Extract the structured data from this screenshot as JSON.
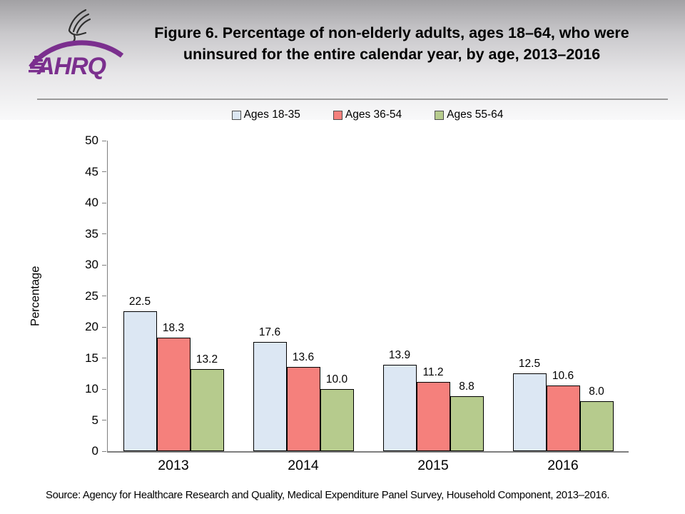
{
  "header": {
    "title_line1": "Figure 6. Percentage of non-elderly adults, ages 18–64, who were",
    "title_line2": "uninsured for the entire calendar year, by age, 2013–2016"
  },
  "logo": {
    "text": "AHRQ",
    "brand_color": "#7b2f8e"
  },
  "chart_data": {
    "type": "bar",
    "title": "Figure 6. Percentage of non-elderly adults, ages 18–64, who were uninsured for the entire calendar year, by age, 2013–2016",
    "categories": [
      "2013",
      "2014",
      "2015",
      "2016"
    ],
    "series": [
      {
        "name": "Ages 18-35",
        "color": "#dce7f3",
        "values": [
          22.5,
          17.6,
          13.9,
          12.5
        ]
      },
      {
        "name": "Ages 36-54",
        "color": "#f5807c",
        "values": [
          18.3,
          13.6,
          11.2,
          10.6
        ]
      },
      {
        "name": "Ages 55-64",
        "color": "#b6cb8d",
        "values": [
          13.2,
          10.0,
          8.8,
          8.0
        ]
      }
    ],
    "xlabel": "",
    "ylabel": "Percentage",
    "ylim": [
      0,
      50
    ],
    "yticks": [
      0,
      5,
      10,
      15,
      20,
      25,
      30,
      35,
      40,
      45,
      50
    ],
    "grid": false,
    "data_labels": true,
    "legend_position": "top"
  },
  "source": "Source: Agency for Healthcare Research and Quality, Medical Expenditure Panel Survey, Household Component, 2013–2016."
}
